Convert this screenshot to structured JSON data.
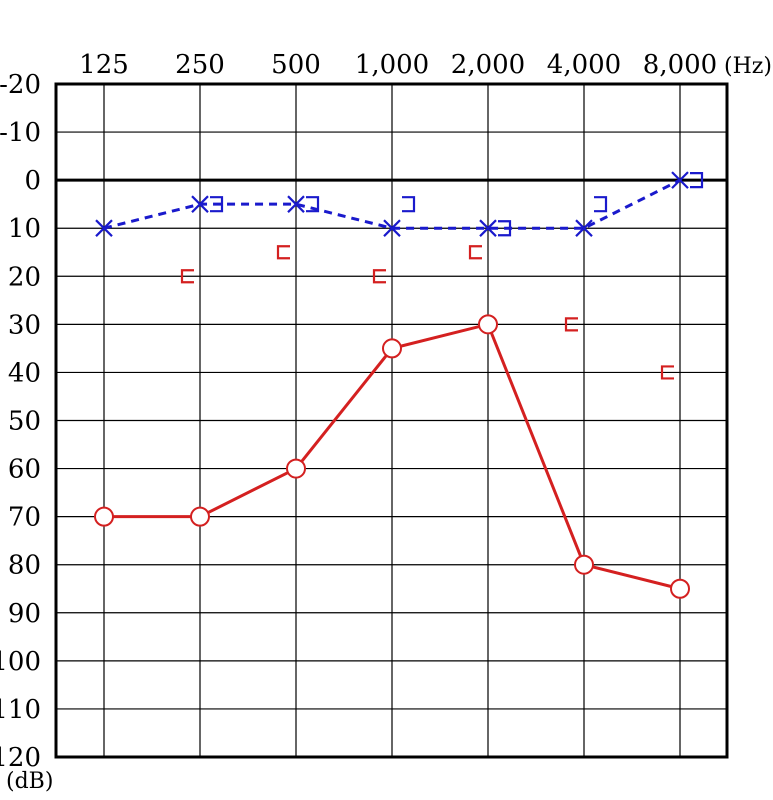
{
  "chart_data": {
    "type": "line",
    "x_unit": "(Hz)",
    "y_unit": "(dB)",
    "categories": [
      "125",
      "250",
      "500",
      "1,000",
      "2,000",
      "4,000",
      "8,000"
    ],
    "x_values": [
      125,
      250,
      500,
      1000,
      2000,
      4000,
      8000
    ],
    "y_ticks": [
      -20,
      -10,
      0,
      10,
      20,
      30,
      40,
      50,
      60,
      70,
      80,
      90,
      100,
      110,
      120
    ],
    "y_range": [
      -20,
      120
    ],
    "y_inverted": true,
    "grid": true,
    "series": [
      {
        "marker": "x",
        "color": "#1a1acc",
        "line_style": "dashed",
        "values": [
          10,
          5,
          5,
          10,
          10,
          10,
          0
        ]
      },
      {
        "marker": "bracket-right-open",
        "color": "#1a1acc",
        "line_style": "none",
        "x": [
          250,
          500,
          1000,
          2000,
          4000,
          8000
        ],
        "values": [
          5,
          5,
          5,
          10,
          5,
          0
        ]
      },
      {
        "marker": "circle",
        "color": "#d42020",
        "line_style": "solid",
        "values": [
          70,
          70,
          60,
          35,
          30,
          80,
          85
        ]
      },
      {
        "marker": "bracket-left-open",
        "color": "#d42020",
        "line_style": "none",
        "x": [
          250,
          500,
          1000,
          2000,
          4000,
          8000
        ],
        "values": [
          20,
          15,
          20,
          15,
          30,
          40
        ]
      }
    ]
  }
}
